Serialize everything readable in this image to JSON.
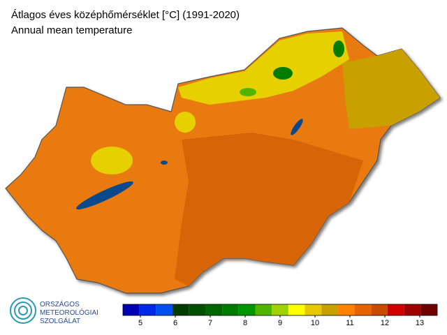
{
  "header": {
    "title": "Átlagos éves középhőmérséklet [°C] (1991-2020)",
    "subtitle": "Annual mean temperature"
  },
  "logo": {
    "lines": [
      "ORSZÁGOS",
      "METEOROLÓGIAI",
      "SZOLGÁLAT"
    ]
  },
  "colorbar": {
    "lim": [
      4.5,
      13.5
    ],
    "ticks": [
      5,
      6,
      7,
      8,
      9,
      10,
      11,
      12,
      13
    ],
    "colors": [
      "#0000b4",
      "#0028e6",
      "#0050f0",
      "#003c00",
      "#005000",
      "#006400",
      "#007d00",
      "#009600",
      "#50b400",
      "#a0d200",
      "#ffff00",
      "#e6c800",
      "#c8a000",
      "#ff8200",
      "#e66400",
      "#c84b00",
      "#d20000",
      "#a00000",
      "#6e0000"
    ]
  }
}
